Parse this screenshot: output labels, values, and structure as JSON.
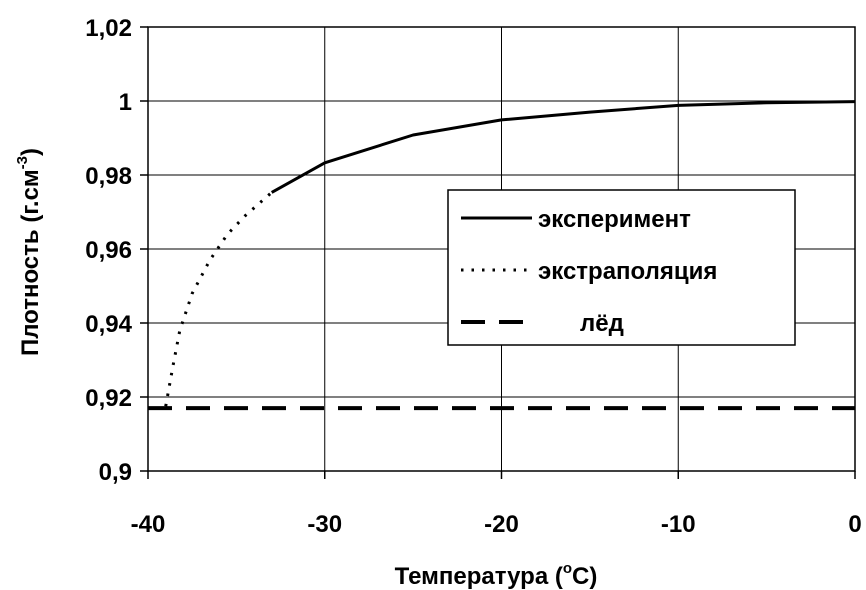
{
  "chart_data": {
    "type": "line",
    "xlabel_main": "Температура (",
    "xlabel_sup": "o",
    "xlabel_tail": "C)",
    "ylabel_main": "Плотность (г.см",
    "ylabel_sup": "-3",
    "ylabel_tail": ")",
    "xlim": [
      -40,
      0
    ],
    "ylim": [
      0.9,
      1.02
    ],
    "x_ticks": [
      -40,
      -30,
      -20,
      -10,
      0
    ],
    "x_tick_labels": [
      "-40",
      "-30",
      "-20",
      "-10",
      "0"
    ],
    "y_ticks": [
      0.9,
      0.92,
      0.94,
      0.96,
      0.98,
      1.0,
      1.02
    ],
    "y_tick_labels": [
      "0,9",
      "0,92",
      "0,94",
      "0,96",
      "0,98",
      "1",
      "1,02"
    ],
    "grid": true,
    "legend_position": "center-right",
    "series": [
      {
        "name": "эксперимент",
        "style": "solid",
        "color": "#000000",
        "x": [
          -33,
          -30,
          -25,
          -20,
          -15,
          -10,
          -5,
          0
        ],
        "y": [
          0.9753,
          0.9833,
          0.9908,
          0.9949,
          0.997,
          0.9988,
          0.9995,
          0.99985
        ]
      },
      {
        "name": "экстраполяция",
        "style": "dotted",
        "color": "#000000",
        "x": [
          -39.0,
          -38.6,
          -38.2,
          -37.5,
          -36.5,
          -35.5,
          -34.5,
          -33.0
        ],
        "y": [
          0.9175,
          0.928,
          0.938,
          0.948,
          0.957,
          0.964,
          0.969,
          0.9753
        ]
      },
      {
        "name": "лёд",
        "style": "dashed",
        "color": "#000000",
        "x": [
          -40,
          0
        ],
        "y": [
          0.917,
          0.917
        ]
      }
    ]
  }
}
